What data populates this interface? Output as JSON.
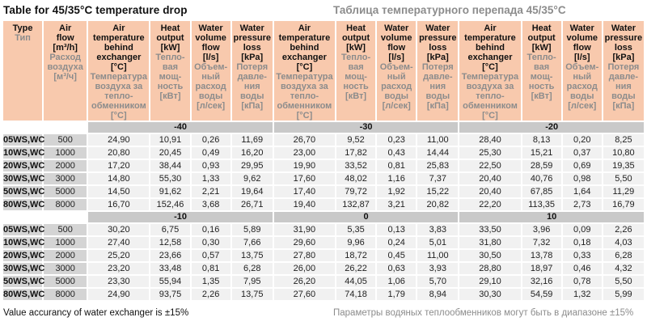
{
  "page": {
    "title_en": "Table for 45/35°C temperature drop",
    "title_ru": "Таблица температурного перепада 45/35°C",
    "footer_en": "Value accurancy of water exchanger is ±15%",
    "footer_ru": "Параметры водяных теплообменников могут быть в диапазоне ±15%"
  },
  "colors": {
    "header_bg": "#f8c9ad",
    "band_bg": "#c9c9c9",
    "label_bg": "#d4d4d4",
    "cell_bg": "#f1f1f1",
    "text_gray": "#8c8c8c"
  },
  "header": {
    "type": {
      "en": "Type",
      "ru": "Тип"
    },
    "air_flow": {
      "en": "Air\nflow\n[m³/h]",
      "ru": "Расход\nвоздуха\n[м³/ч]"
    },
    "columns": [
      {
        "en": "Air\ntemperature\nbehind\nexchanger\n[°C]",
        "ru": "Температура\nвоздуха за\nтепло-\nобменником\n[°С]"
      },
      {
        "en": "Heat\noutput\n[kW]",
        "ru": "Тепло-\nвая\nмощ-\nность\n[кВт]"
      },
      {
        "en": "Water\nvolume\nflow\n[l/s]",
        "ru": "Объем-\nный\nрасход\nводы\n[л/сек]"
      },
      {
        "en": "Water\npressure\nloss\n[kPa]",
        "ru": "Потеря\nдавле-\nния\nводы\n[кПа]"
      }
    ]
  },
  "blocks": [
    {
      "temperatures": [
        "-40",
        "-30",
        "-20"
      ],
      "rows": [
        {
          "type": "05WS,WC",
          "air_flow": "500",
          "values": [
            "24,90",
            "10,91",
            "0,26",
            "11,69",
            "26,70",
            "9,52",
            "0,23",
            "11,00",
            "28,40",
            "8,13",
            "0,20",
            "8,25"
          ]
        },
        {
          "type": "10WS,WC",
          "air_flow": "1000",
          "values": [
            "20,80",
            "20,45",
            "0,49",
            "16,20",
            "23,00",
            "17,82",
            "0,43",
            "14,44",
            "25,30",
            "15,21",
            "0,37",
            "10,80"
          ]
        },
        {
          "type": "20WS,WC",
          "air_flow": "2000",
          "values": [
            "17,20",
            "38,44",
            "0,93",
            "29,95",
            "19,90",
            "33,52",
            "0,81",
            "25,83",
            "22,50",
            "28,59",
            "0,69",
            "19,35"
          ]
        },
        {
          "type": "30WS,WC",
          "air_flow": "3000",
          "values": [
            "14,80",
            "55,30",
            "1,33",
            "9,62",
            "17,60",
            "48,02",
            "1,16",
            "7,37",
            "20,40",
            "40,76",
            "0,98",
            "5,50"
          ]
        },
        {
          "type": "50WS,WC",
          "air_flow": "5000",
          "values": [
            "14,50",
            "91,62",
            "2,21",
            "19,64",
            "17,40",
            "79,72",
            "1,92",
            "15,22",
            "20,40",
            "67,85",
            "1,64",
            "11,29"
          ]
        },
        {
          "type": "80WS,WC",
          "air_flow": "8000",
          "values": [
            "16,70",
            "152,46",
            "3,68",
            "26,71",
            "19,40",
            "132,87",
            "3,21",
            "20,82",
            "22,20",
            "113,35",
            "2,73",
            "16,79"
          ]
        }
      ]
    },
    {
      "temperatures": [
        "-10",
        "0",
        "10"
      ],
      "rows": [
        {
          "type": "05WS,WC",
          "air_flow": "500",
          "values": [
            "30,20",
            "6,75",
            "0,16",
            "5,89",
            "31,90",
            "5,35",
            "0,13",
            "3,83",
            "33,50",
            "3,96",
            "0,09",
            "2,26"
          ]
        },
        {
          "type": "10WS,WC",
          "air_flow": "1000",
          "values": [
            "27,40",
            "12,58",
            "0,30",
            "7,66",
            "29,60",
            "9,96",
            "0,24",
            "5,01",
            "31,80",
            "7,32",
            "0,18",
            "4,03"
          ]
        },
        {
          "type": "20WS,WC",
          "air_flow": "2000",
          "values": [
            "25,20",
            "23,66",
            "0,57",
            "13,75",
            "27,80",
            "18,72",
            "0,45",
            "11,00",
            "30,50",
            "13,78",
            "0,33",
            "6,28"
          ]
        },
        {
          "type": "30WS,WC",
          "air_flow": "3000",
          "values": [
            "23,20",
            "33,48",
            "0,81",
            "6,28",
            "26,00",
            "26,22",
            "0,63",
            "3,93",
            "28,80",
            "18,97",
            "0,46",
            "4,32"
          ]
        },
        {
          "type": "50WS,WC",
          "air_flow": "5000",
          "values": [
            "23,30",
            "55,94",
            "1,35",
            "7,95",
            "26,20",
            "44,05",
            "1,06",
            "5,70",
            "29,10",
            "32,16",
            "0,78",
            "5,50"
          ]
        },
        {
          "type": "80WS,WC",
          "air_flow": "8000",
          "values": [
            "24,90",
            "93,75",
            "2,26",
            "13,75",
            "27,60",
            "74,18",
            "1,79",
            "8,94",
            "30,30",
            "54,59",
            "1,32",
            "5,99"
          ]
        }
      ]
    }
  ]
}
